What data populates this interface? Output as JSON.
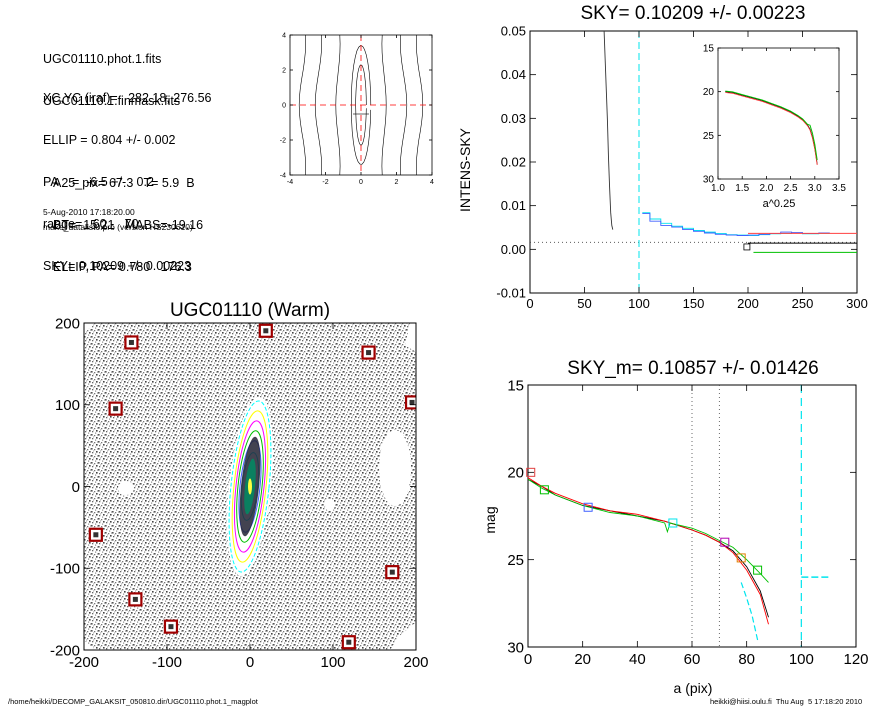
{
  "header": {
    "lines_a": [
      "UGC01110.phot.1.fits",
      "UGC01110.1.finmask.fits"
    ],
    "lines_b": [
      "XC,YC (iraf)=   282.18, 276.56",
      "ELLIP = 0.804 +/- 0.002",
      "PA    =  -6.5 +/-   0.2",
      "range=   60.-   70.",
      "SKY= 0.10209 +/- 0.00223"
    ],
    "lines_c": [
      "A25_pix= 67.3   T= 5.9  B",
      "BT=  15.21   MABS=-19.16",
      "ELLIP, PA= 0.780   176.3"
    ],
    "date": "5-Aug-2010 17:18:20.00",
    "program": "make_datalist0.pro (version HS230610)"
  },
  "footer": {
    "path": "/home/heikki/DECOMP_GALAKSIT_050810.dir/UGC01110.phot.1_magplot",
    "user": "heikki@hiisi.oulu.fi  Thu Aug  5 17:18:20 2010"
  },
  "colors": {
    "sky_line": "#00e5ee",
    "ref_line": "#ff0000",
    "mask_box": "#a00000",
    "green": "#00c000"
  },
  "chart_data": [
    {
      "id": "contour_center",
      "type": "contour",
      "xlim": [
        -4,
        4
      ],
      "ylim": [
        -4,
        4
      ],
      "xticks": [
        "-4",
        "-2",
        "0",
        "2",
        "4"
      ],
      "yticks": [
        "4",
        "2",
        "0",
        "-2",
        "-4"
      ]
    },
    {
      "id": "intens_sky",
      "type": "line",
      "title": "SKY= 0.10209 +/- 0.00223",
      "ylabel": "INTENS-SKY",
      "xlim": [
        0,
        300
      ],
      "ylim": [
        -0.012,
        0.05
      ],
      "xticks": [
        "0",
        "50",
        "100",
        "150",
        "200",
        "250",
        "300"
      ],
      "yticks": [
        "0.05",
        "0.04",
        "0.03",
        "0.02",
        "0.01",
        "0.00",
        "-0.01"
      ],
      "sky_vline_x": 100,
      "profile_x": [
        68,
        69,
        70,
        71,
        72,
        73,
        74,
        75,
        76
      ],
      "profile_y": [
        0.05,
        0.043,
        0.036,
        0.029,
        0.02,
        0.013,
        0.007,
        0.004,
        0.003
      ],
      "residual_steps": [
        {
          "color": "#00e5ee",
          "x": [
            103,
            110,
            120,
            130,
            140,
            150,
            160,
            170,
            180,
            190,
            200,
            210,
            220,
            230,
            240,
            250,
            265
          ],
          "y": [
            0.007,
            0.0055,
            0.0045,
            0.0038,
            0.0033,
            0.0028,
            0.0024,
            0.0021,
            0.0018,
            0.0017,
            0.0016,
            0.0018,
            0.002,
            0.0021,
            0.0022,
            0.002,
            0.0021
          ]
        },
        {
          "color": "#4060ff",
          "x": [
            103,
            110,
            120,
            130,
            140,
            150,
            160,
            170,
            180,
            190,
            200,
            210,
            220,
            230,
            240,
            250,
            265
          ],
          "y": [
            0.0068,
            0.005,
            0.004,
            0.0036,
            0.003,
            0.0026,
            0.0022,
            0.0019,
            0.0017,
            0.0016,
            0.0017,
            0.0019,
            0.0021,
            0.0024,
            0.0023,
            0.0021,
            0.0022
          ]
        }
      ],
      "tail_lines": [
        {
          "color": "#ff4040",
          "y": 0.0021,
          "x": [
            200,
            300
          ]
        },
        {
          "color": "#000000",
          "y": -0.0002,
          "x": [
            200,
            300
          ]
        },
        {
          "color": "#00c000",
          "y": -0.0024,
          "x": [
            205,
            300
          ]
        }
      ],
      "zero_line_y": 0.0,
      "sky_marker": {
        "x": 199,
        "y": -0.0011
      },
      "inset": {
        "xlabel": "a^0.25",
        "xlim": [
          1.0,
          3.5
        ],
        "ylim": [
          15,
          30
        ],
        "xticks": [
          "1.0",
          "1.5",
          "2.0",
          "2.5",
          "3.0",
          "3.5"
        ],
        "yticks": [
          "15",
          "20",
          "25",
          "30"
        ],
        "x": [
          1.15,
          1.3,
          1.5,
          1.7,
          1.9,
          2.1,
          2.3,
          2.5,
          2.65,
          2.75,
          2.85,
          2.9,
          2.95,
          3.0,
          3.05
        ],
        "y": [
          20.0,
          20.1,
          20.4,
          20.7,
          21.0,
          21.4,
          21.8,
          22.3,
          22.8,
          23.2,
          23.8,
          24.3,
          25.2,
          26.5,
          28.3
        ]
      }
    },
    {
      "id": "image",
      "type": "image",
      "title": "UGC01110 (Warm)",
      "xlim": [
        -210,
        210
      ],
      "ylim": [
        -210,
        210
      ],
      "xticks": [
        "-200",
        "-100",
        "0",
        "100",
        "200"
      ],
      "yticks": [
        "200",
        "100",
        "0",
        "-100",
        "-200"
      ],
      "mask_boxes": [
        [
          -150,
          185
        ],
        [
          20,
          200
        ],
        [
          150,
          172
        ],
        [
          -170,
          100
        ],
        [
          205,
          108
        ],
        [
          -195,
          -62
        ],
        [
          180,
          -110
        ],
        [
          -145,
          -145
        ],
        [
          -100,
          -180
        ],
        [
          125,
          -200
        ]
      ],
      "ellipse_contours": [
        "#00ffff",
        "#ffff00",
        "#ff00ff",
        "#00c000",
        "#4060ff",
        "#00e5ee"
      ]
    },
    {
      "id": "mag_profile",
      "type": "line",
      "title": "SKY_m=  0.10857 +/- 0.01426",
      "xlabel": "a (pix)",
      "ylabel": "mag",
      "xlim": [
        0,
        120
      ],
      "ylim": [
        15,
        30
      ],
      "xticks": [
        "0",
        "20",
        "40",
        "60",
        "80",
        "100",
        "120"
      ],
      "yticks": [
        "15",
        "20",
        "25",
        "30"
      ],
      "dotted_vlines": [
        60,
        70
      ],
      "sky_vline_x": 100,
      "sky_dash_y": 26.0,
      "series": [
        {
          "color": "#000000",
          "x": [
            0,
            5,
            10,
            20,
            30,
            40,
            50,
            60,
            65,
            70,
            75,
            80,
            85,
            88
          ],
          "y": [
            20.4,
            20.8,
            21.3,
            21.9,
            22.2,
            22.5,
            22.8,
            23.3,
            23.6,
            24.0,
            24.5,
            25.4,
            26.8,
            28.3
          ]
        },
        {
          "color": "#ff0000",
          "x": [
            0,
            5,
            10,
            20,
            30,
            40,
            50,
            60,
            65,
            70,
            75,
            80,
            85,
            88
          ],
          "y": [
            20.3,
            20.8,
            21.2,
            21.8,
            22.2,
            22.4,
            22.8,
            23.3,
            23.6,
            24.0,
            24.6,
            25.6,
            27.0,
            28.7
          ]
        },
        {
          "color": "#00c000",
          "x": [
            0,
            5,
            10,
            20,
            30,
            40,
            50,
            51,
            52,
            60,
            65,
            70,
            75,
            80,
            85,
            88
          ],
          "y": [
            20.4,
            20.9,
            21.3,
            21.9,
            22.3,
            22.5,
            22.9,
            23.4,
            22.9,
            23.2,
            23.5,
            23.9,
            24.3,
            25.0,
            25.8,
            26.3
          ]
        },
        {
          "color": "#00e5ee",
          "x": [
            78,
            80,
            82,
            84
          ],
          "y": [
            26.3,
            27.2,
            28.2,
            29.6
          ]
        }
      ],
      "markers": [
        {
          "x": 1,
          "y": 20.0,
          "color": "#e04040"
        },
        {
          "x": 6,
          "y": 21.0,
          "color": "#00c000"
        },
        {
          "x": 22,
          "y": 22.0,
          "color": "#4060ff"
        },
        {
          "x": 53,
          "y": 22.9,
          "color": "#00e5ee"
        },
        {
          "x": 72,
          "y": 24.0,
          "color": "#b000b0"
        },
        {
          "x": 78,
          "y": 24.9,
          "color": "#e08000"
        },
        {
          "x": 84,
          "y": 25.6,
          "color": "#00c000"
        }
      ]
    }
  ]
}
